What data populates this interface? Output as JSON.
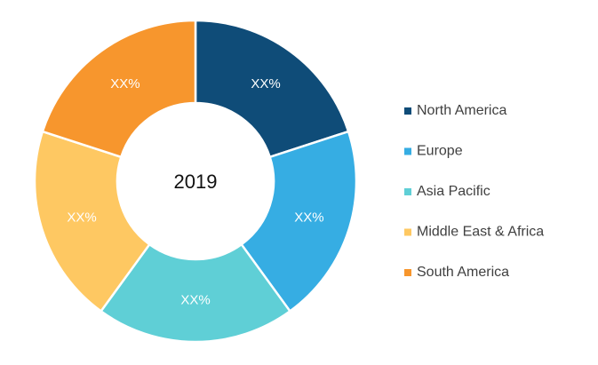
{
  "chart_data": {
    "type": "donut",
    "center_label": "2019",
    "categories": [
      "North America",
      "Europe",
      "Asia Pacific",
      "Middle East & Africa",
      "South America"
    ],
    "values": [
      20,
      20,
      20,
      20,
      20
    ],
    "value_labels": [
      "XX%",
      "XX%",
      "XX%",
      "XX%",
      "XX%"
    ],
    "colors": [
      "#0f4c78",
      "#36ade3",
      "#5fcfd6",
      "#fec862",
      "#f7962d"
    ],
    "legend": "right"
  }
}
